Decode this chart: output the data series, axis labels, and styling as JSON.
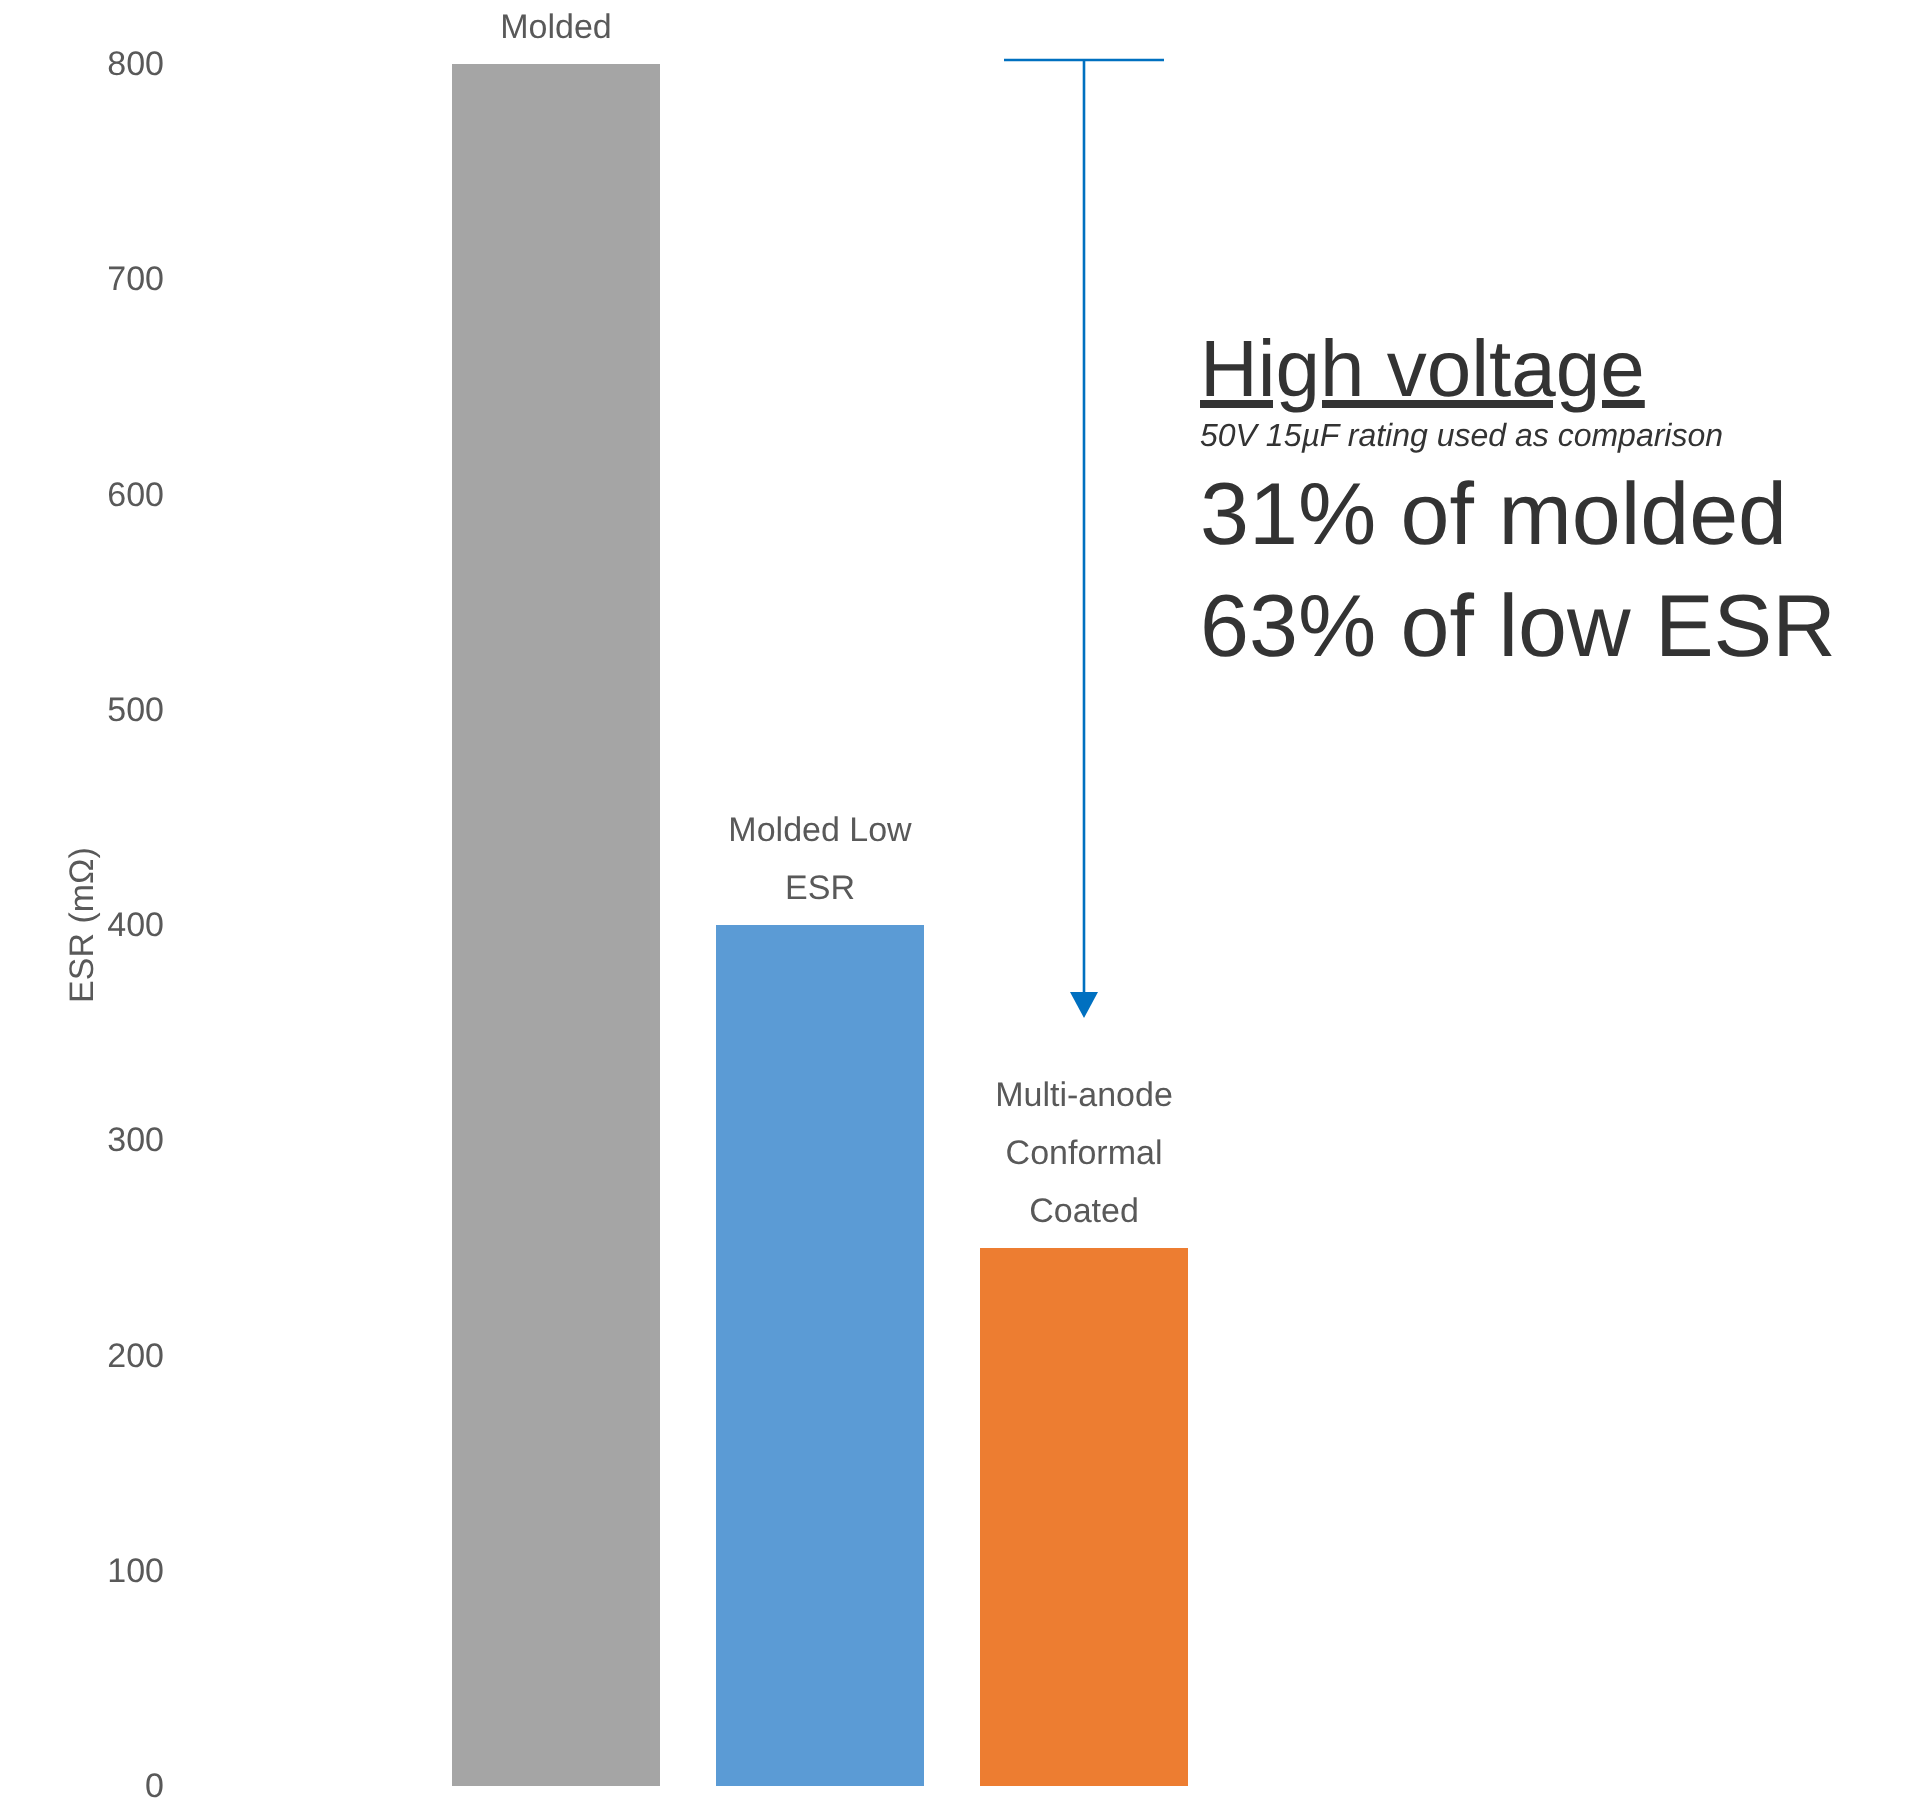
{
  "chart_data": {
    "type": "bar",
    "categories": [
      "Molded",
      "Molded Low ESR",
      "Multi-anode Conformal Coated"
    ],
    "values": [
      800,
      400,
      250
    ],
    "colors": [
      "#a5a5a5",
      "#5b9bd5",
      "#ed7d31"
    ],
    "ylabel": "ESR (mΩ)",
    "ylim": [
      0,
      800
    ],
    "yticks": [
      0,
      100,
      200,
      300,
      400,
      500,
      600,
      700,
      800
    ],
    "annotations": [
      "High voltage",
      "50V 15µF rating used as comparison",
      "31% of molded",
      "63% of low ESR"
    ],
    "grid": false
  }
}
